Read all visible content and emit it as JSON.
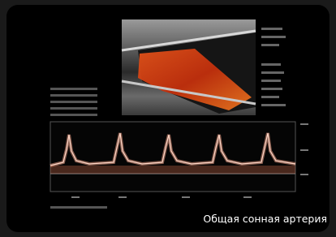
{
  "caption": "Общая сонная артерия"
}
